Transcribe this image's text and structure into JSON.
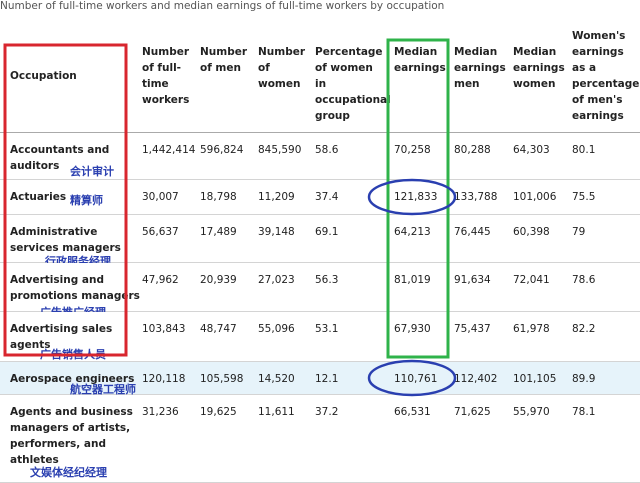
{
  "caption": "Number of full-time workers and median earnings of full-time workers by occupation",
  "table": {
    "headers": [
      "Occupation",
      "Number of full-time workers",
      "Number of men",
      "Number of women",
      "Percentage of women in occupational group",
      "Median earnings",
      "Median earnings men",
      "Median earnings women",
      "Women's earnings as a percentage of men's earnings"
    ],
    "rows": [
      {
        "occupation": "Accountants and auditors",
        "note": "会计审计",
        "values": [
          "1,442,414",
          "596,824",
          "845,590",
          "58.6",
          "70,258",
          "80,288",
          "64,303",
          "80.1"
        ]
      },
      {
        "occupation": "Actuaries",
        "note": "精算师",
        "values": [
          "30,007",
          "18,798",
          "11,209",
          "37.4",
          "121,833",
          "133,788",
          "101,006",
          "75.5"
        ]
      },
      {
        "occupation": "Administrative services managers",
        "note": "行政服务经理",
        "values": [
          "56,637",
          "17,489",
          "39,148",
          "69.1",
          "64,213",
          "76,445",
          "60,398",
          "79"
        ]
      },
      {
        "occupation": "Advertising and promotions managers",
        "note": "广告推广经理",
        "values": [
          "47,962",
          "20,939",
          "27,023",
          "56.3",
          "81,019",
          "91,634",
          "72,041",
          "78.6"
        ]
      },
      {
        "occupation": "Advertising sales agents",
        "note": "广告销售人员",
        "values": [
          "103,843",
          "48,747",
          "55,096",
          "53.1",
          "67,930",
          "75,437",
          "61,978",
          "82.2"
        ]
      },
      {
        "occupation": "Aerospace engineers",
        "note": "航空器工程师",
        "values": [
          "120,118",
          "105,598",
          "14,520",
          "12.1",
          "110,761",
          "112,402",
          "101,105",
          "89.9"
        ]
      },
      {
        "occupation": "Agents and business managers of artists, performers, and athletes",
        "note": "文娱体经纪经理",
        "values": [
          "31,236",
          "19,625",
          "11,611",
          "37.2",
          "66,531",
          "71,625",
          "55,970",
          "78.1"
        ]
      }
    ]
  }
}
